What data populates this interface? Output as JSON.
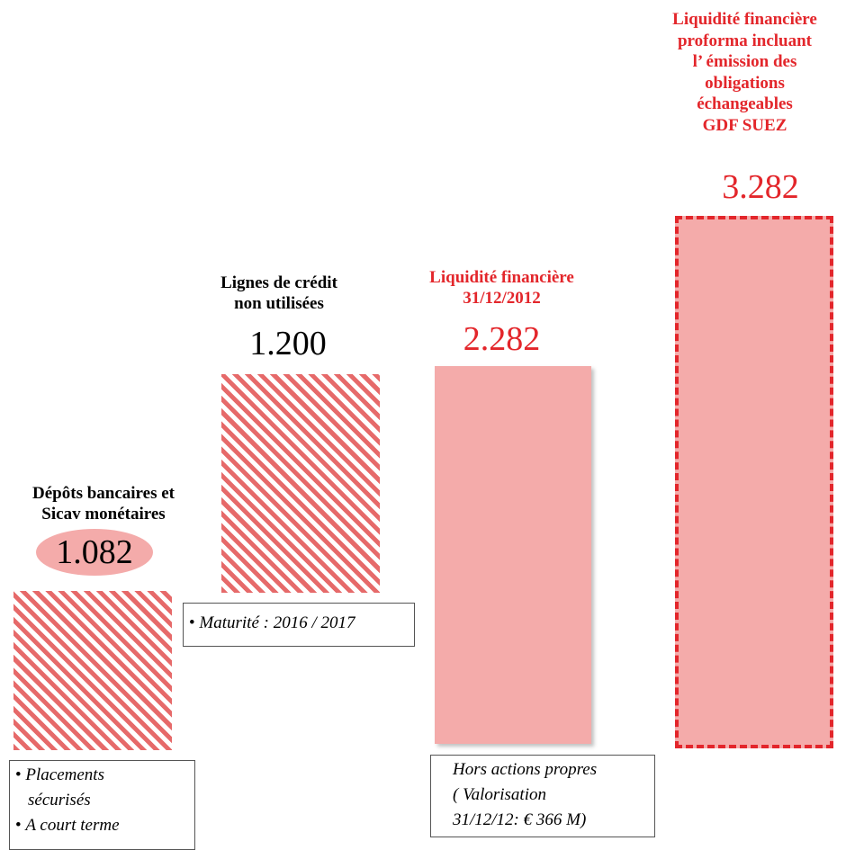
{
  "chart_data": {
    "type": "bar",
    "categories": [
      "Dépôts bancaires et Sicav monétaires",
      "Lignes de crédit non utilisées",
      "Liquidité financière 31/12/2012",
      "Liquidité financière proforma incluant l’ émission des obligations échangeables GDF SUEZ"
    ],
    "values": [
      1082,
      1200,
      2282,
      3282
    ],
    "value_labels": [
      "1.082",
      "1.200",
      "2.282",
      "3.282"
    ],
    "stacking": "waterfall",
    "ylim": [
      0,
      3400
    ],
    "colors": {
      "hatch": "#e66a6a",
      "solid_fill": "#f4abaa",
      "dashed_border": "#e3262b",
      "highlight_text": "#e3262b"
    }
  },
  "bars": [
    {
      "label": "Dépôts bancaires et\nSicav monétaires",
      "value_text": "1.082",
      "style": "hatched",
      "label_color": "#000000",
      "value_highlight": "oval"
    },
    {
      "label": "Lignes de crédit\nnon utilisées",
      "value_text": "1.200",
      "style": "hatched",
      "label_color": "#000000"
    },
    {
      "label": "Liquidité financière\n31/12/2012",
      "value_text": "2.282",
      "style": "solid",
      "label_color": "#e3262b"
    },
    {
      "label": "Liquidité financière\nproforma incluant\nl’ émission des\nobligations\néchangeables\nGDF SUEZ",
      "value_text": "3.282",
      "style": "dashed",
      "label_color": "#e3262b"
    }
  ],
  "notes": {
    "deposits": [
      "Placements",
      "sécurisés",
      "A court terme"
    ],
    "credit_lines": "Maturité : 2016 / 2017",
    "liquidity": [
      "Hors actions propres",
      "( Valorisation",
      "31/12/12: € 366 M)"
    ]
  }
}
